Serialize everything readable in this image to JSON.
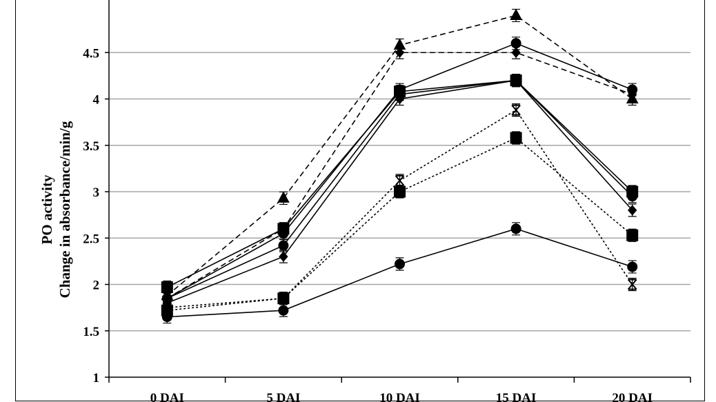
{
  "chart_data": {
    "type": "line",
    "title": "",
    "ylabel_line1": "PO activity",
    "ylabel_line2": "Change in absorbance/min/g",
    "xlabel": "",
    "categories": [
      "0 DAI",
      "5 DAI",
      "10 DAI",
      "15 DAI",
      "20 DAI"
    ],
    "ylim": [
      1,
      5
    ],
    "yticks": [
      1,
      1.5,
      2,
      2.5,
      3,
      3.5,
      4,
      4.5
    ],
    "ytick_labels": [
      "1",
      "1.5",
      "2",
      "2.5",
      "3",
      "3.5",
      "4",
      "4.5"
    ],
    "grid": true,
    "legend": "none",
    "series": [
      {
        "values": [
          1.65,
          1.72,
          2.22,
          2.6,
          2.19
        ],
        "marker": "circle",
        "line": "solid"
      },
      {
        "values": [
          1.72,
          1.85,
          3.0,
          3.58,
          2.53
        ],
        "marker": "square",
        "line": "dotted"
      },
      {
        "values": [
          1.75,
          1.85,
          3.12,
          3.88,
          2.0
        ],
        "marker": "x-bar",
        "line": "dotted"
      },
      {
        "values": [
          1.8,
          2.3,
          4.0,
          4.2,
          2.8
        ],
        "marker": "diamond",
        "line": "solid"
      },
      {
        "values": [
          1.85,
          2.42,
          4.05,
          4.2,
          2.95
        ],
        "marker": "circle",
        "line": "solid"
      },
      {
        "values": [
          1.97,
          2.6,
          4.08,
          4.2,
          3.0
        ],
        "marker": "square",
        "line": "solid"
      },
      {
        "values": [
          1.85,
          2.55,
          4.1,
          4.6,
          4.1
        ],
        "marker": "circle",
        "line": "solid"
      },
      {
        "values": [
          1.85,
          2.6,
          4.5,
          4.5,
          4.05
        ],
        "marker": "diamond",
        "line": "dashed"
      },
      {
        "values": [
          1.88,
          2.93,
          4.58,
          4.9,
          4.0
        ],
        "marker": "triangle",
        "line": "dashed"
      }
    ],
    "colors": {
      "line": "#000000",
      "grid": "#a6a6a6"
    }
  }
}
